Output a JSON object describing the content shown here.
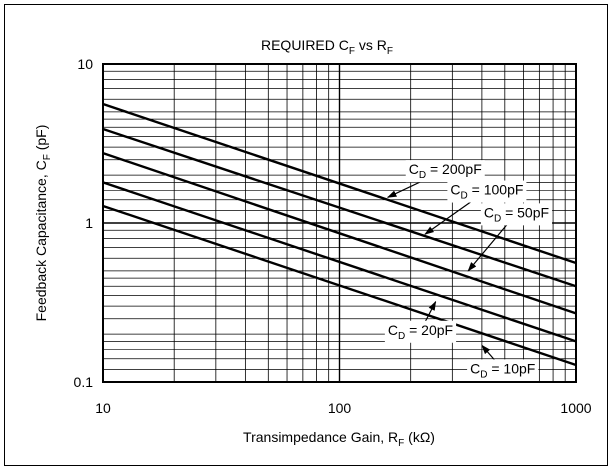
{
  "chart_data": {
    "type": "line",
    "title": {
      "main": "REQUIRED C",
      "sub1": "F",
      "mid": " vs R",
      "sub2": "F"
    },
    "xlabel": {
      "main": "Transimpedance Gain, R",
      "sub": "F",
      "unit": " (kΩ)"
    },
    "ylabel": {
      "main": "Feedback Capacitance, C",
      "sub": "F",
      "unit": " (pF)"
    },
    "x_scale": "log",
    "y_scale": "log",
    "xlim": [
      10,
      1000
    ],
    "ylim": [
      0.1,
      10
    ],
    "x_ticks": [
      {
        "value": 10,
        "label": "10"
      },
      {
        "value": 100,
        "label": "100"
      },
      {
        "value": 1000,
        "label": "1000"
      }
    ],
    "y_ticks": [
      {
        "value": 0.1,
        "label": "0.1"
      },
      {
        "value": 1,
        "label": "1"
      },
      {
        "value": 10,
        "label": "10"
      }
    ],
    "grid": true,
    "legend": "none",
    "series": [
      {
        "name": "C_D = 200pF",
        "x": [
          10,
          1000
        ],
        "y": [
          5.6,
          0.56
        ]
      },
      {
        "name": "C_D = 100pF",
        "x": [
          10,
          1000
        ],
        "y": [
          3.9,
          0.4
        ]
      },
      {
        "name": "C_D = 50pF",
        "x": [
          10,
          1000
        ],
        "y": [
          2.75,
          0.27
        ]
      },
      {
        "name": "C_D = 20pF",
        "x": [
          10,
          1000
        ],
        "y": [
          1.8,
          0.18
        ]
      },
      {
        "name": "C_D = 10pF",
        "x": [
          10,
          1000
        ],
        "y": [
          1.28,
          0.128
        ]
      }
    ],
    "annotations": [
      {
        "prefix": "C",
        "sub": "D",
        "text": " = 200pF",
        "value_x": 280,
        "value_y": 2.15,
        "arrow_to_x": 160,
        "arrow_to_y": 1.45
      },
      {
        "prefix": "C",
        "sub": "D",
        "text": " = 100pF",
        "value_x": 420,
        "value_y": 1.6,
        "arrow_to_x": 230,
        "arrow_to_y": 0.85
      },
      {
        "prefix": "C",
        "sub": "D",
        "text": " = 50pF",
        "value_x": 560,
        "value_y": 1.15,
        "arrow_to_x": 350,
        "arrow_to_y": 0.5
      },
      {
        "prefix": "C",
        "sub": "D",
        "text": " = 20pF",
        "value_x": 220,
        "value_y": 0.21,
        "arrow_to_x": 255,
        "arrow_to_y": 0.32
      },
      {
        "prefix": "C",
        "sub": "D",
        "text": " = 10pF",
        "value_x": 490,
        "value_y": 0.12,
        "arrow_to_x": 400,
        "arrow_to_y": 0.17
      }
    ]
  }
}
